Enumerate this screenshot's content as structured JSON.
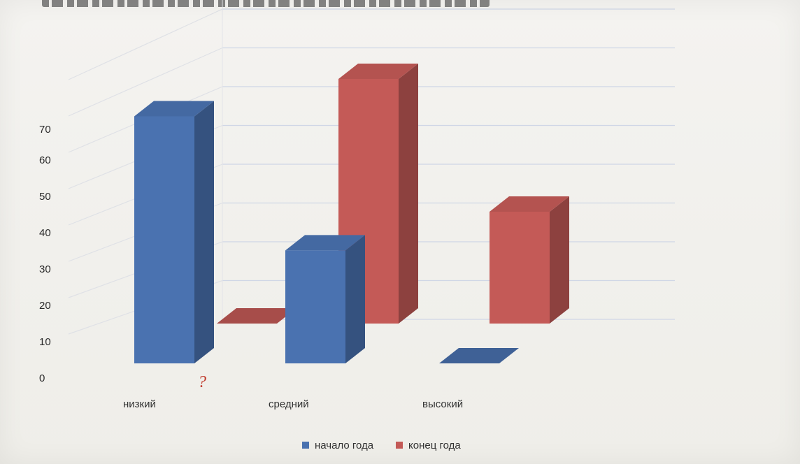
{
  "chart_data": {
    "type": "bar",
    "categories": [
      "низкий",
      "средний",
      "высокий"
    ],
    "series": [
      {
        "name": "начало года",
        "values": [
          70,
          32,
          0
        ],
        "color": "#4a72b0"
      },
      {
        "name": "конец года",
        "values": [
          0,
          70,
          32
        ],
        "color": "#c45a57"
      }
    ],
    "yticks": [
      "0",
      "10",
      "20",
      "30",
      "40",
      "50",
      "60",
      "70"
    ],
    "ylim": [
      0,
      80
    ],
    "grid": true,
    "legend": "bottom",
    "title": "",
    "xlabel": "",
    "ylabel": "",
    "annotation": "?"
  }
}
